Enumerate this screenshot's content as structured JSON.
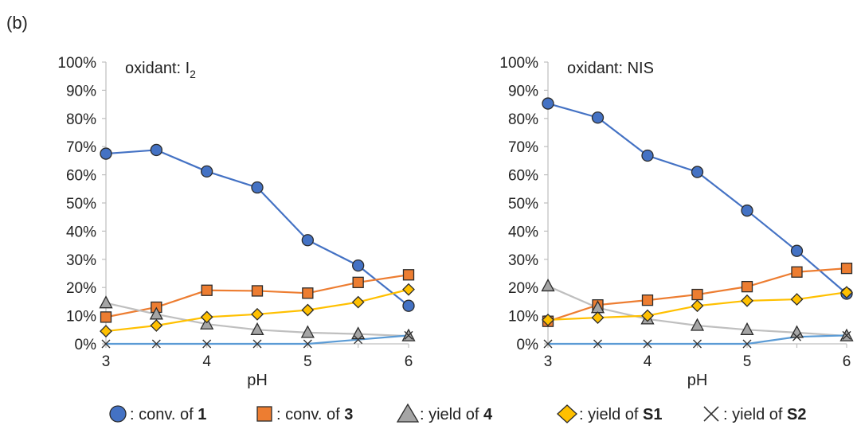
{
  "figure": {
    "panel_label": "(b)",
    "legend": [
      {
        "key": "conv1",
        "text": ": conv. of ",
        "bold": "1",
        "marker": "circle",
        "color": "#4472C4"
      },
      {
        "key": "conv3",
        "text": ": conv. of ",
        "bold": "3",
        "marker": "square",
        "color": "#ED7D31"
      },
      {
        "key": "yield4",
        "text": ": yield of ",
        "bold": "4",
        "marker": "triangle",
        "color": "#A5A5A5"
      },
      {
        "key": "yieldS1",
        "text": ": yield of ",
        "bold": "S1",
        "marker": "diamond",
        "color": "#FFC000"
      },
      {
        "key": "yieldS2",
        "text": ": yield of ",
        "bold": "S2",
        "marker": "x",
        "color": "#5B9BD5"
      }
    ]
  },
  "chart_data": [
    {
      "type": "line",
      "annotation": "oxidant: I",
      "annotation_sub": "2",
      "xlabel": "pH",
      "ylabel": "",
      "xlim": [
        3,
        6
      ],
      "ylim": [
        0,
        100
      ],
      "xticks": [
        3,
        4,
        5,
        6
      ],
      "yticks": [
        "0%",
        "10%",
        "20%",
        "30%",
        "40%",
        "50%",
        "60%",
        "70%",
        "80%",
        "90%",
        "100%"
      ],
      "x": [
        3,
        3.5,
        4,
        4.5,
        5,
        5.5,
        6
      ],
      "grid": false,
      "series": [
        {
          "key": "conv1",
          "marker": "circle",
          "line_color": "#4472C4",
          "fill": "#4472C4",
          "values": [
            67.5,
            68.8,
            61.2,
            55.5,
            36.8,
            27.8,
            13.5
          ]
        },
        {
          "key": "conv3",
          "marker": "square",
          "line_color": "#ED7D31",
          "fill": "#ED7D31",
          "values": [
            9.5,
            13.0,
            19.0,
            18.8,
            18.0,
            21.8,
            24.5
          ]
        },
        {
          "key": "yield4",
          "marker": "triangle",
          "line_color": "#BFBFBF",
          "fill": "#A5A5A5",
          "values": [
            14.5,
            10.5,
            7.0,
            5.0,
            4.0,
            3.5,
            2.8
          ]
        },
        {
          "key": "yieldS1",
          "marker": "diamond",
          "line_color": "#FFC000",
          "fill": "#FFC000",
          "values": [
            4.5,
            6.5,
            9.5,
            10.5,
            12.0,
            14.8,
            19.3
          ]
        },
        {
          "key": "yieldS2",
          "marker": "x",
          "line_color": "#5B9BD5",
          "fill": "none",
          "values": [
            0,
            0,
            0,
            0,
            0,
            1.5,
            3.0
          ]
        }
      ]
    },
    {
      "type": "line",
      "annotation": "oxidant: NIS",
      "annotation_sub": "",
      "xlabel": "pH",
      "ylabel": "",
      "xlim": [
        3,
        6
      ],
      "ylim": [
        0,
        100
      ],
      "xticks": [
        3,
        4,
        5,
        6
      ],
      "yticks": [
        "0%",
        "10%",
        "20%",
        "30%",
        "40%",
        "50%",
        "60%",
        "70%",
        "80%",
        "90%",
        "100%"
      ],
      "x": [
        3,
        3.5,
        4,
        4.5,
        5,
        5.5,
        6
      ],
      "grid": false,
      "series": [
        {
          "key": "conv1",
          "marker": "circle",
          "line_color": "#4472C4",
          "fill": "#4472C4",
          "values": [
            85.3,
            80.3,
            66.8,
            61.0,
            47.3,
            33.0,
            17.8
          ]
        },
        {
          "key": "conv3",
          "marker": "square",
          "line_color": "#ED7D31",
          "fill": "#ED7D31",
          "values": [
            8.0,
            13.8,
            15.5,
            17.5,
            20.3,
            25.5,
            26.8
          ]
        },
        {
          "key": "yield4",
          "marker": "triangle",
          "line_color": "#BFBFBF",
          "fill": "#A5A5A5",
          "values": [
            20.5,
            12.8,
            8.8,
            6.5,
            5.0,
            4.0,
            2.8
          ]
        },
        {
          "key": "yieldS1",
          "marker": "diamond",
          "line_color": "#FFC000",
          "fill": "#FFC000",
          "values": [
            8.5,
            9.3,
            10.0,
            13.5,
            15.3,
            15.8,
            18.3
          ]
        },
        {
          "key": "yieldS2",
          "marker": "x",
          "line_color": "#5B9BD5",
          "fill": "none",
          "values": [
            0,
            0,
            0,
            0,
            0,
            2.5,
            3.0
          ]
        }
      ]
    }
  ]
}
